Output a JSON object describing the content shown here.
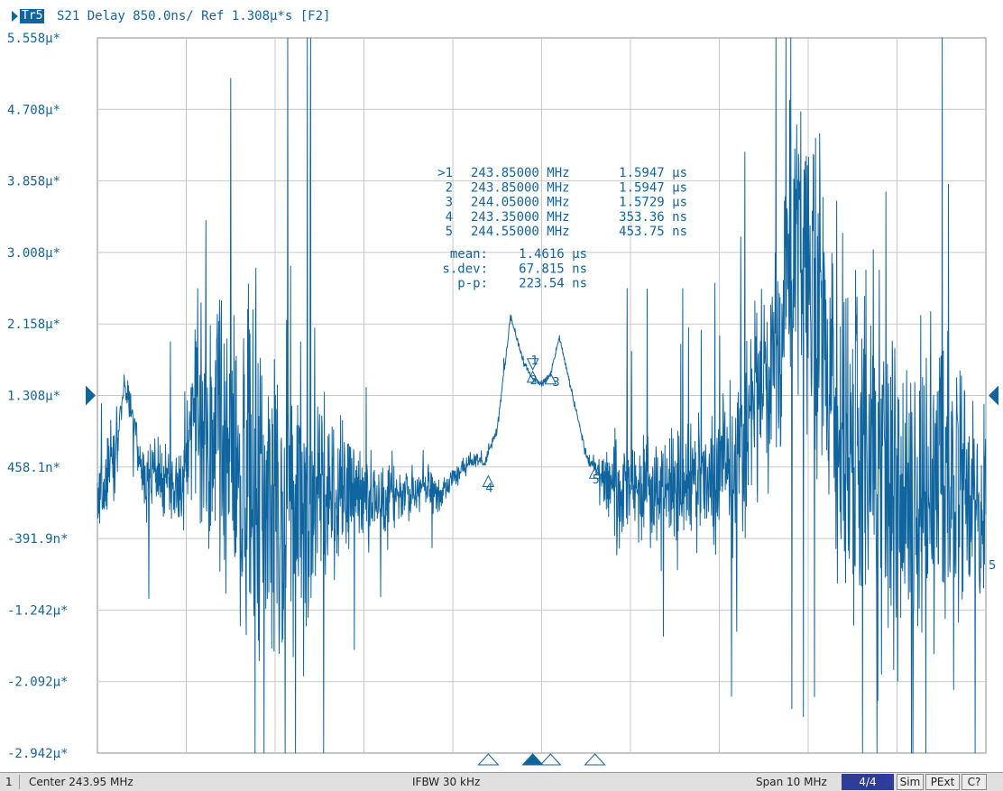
{
  "trace": {
    "badge": "Tr5",
    "title": "S21 Delay 850.0ns/ Ref 1.308µ*s [F2]",
    "color": "#10659e"
  },
  "marker_table": [
    {
      "label": ">1",
      "freq": "243.85000 MHz",
      "value": "1.5947 µs"
    },
    {
      "label": "2",
      "freq": "243.85000 MHz",
      "value": "1.5947 µs"
    },
    {
      "label": "3",
      "freq": "244.05000 MHz",
      "value": "1.5729 µs"
    },
    {
      "label": "4",
      "freq": "243.35000 MHz",
      "value": "353.36 ns"
    },
    {
      "label": "5",
      "freq": "244.55000 MHz",
      "value": "453.75 ns"
    }
  ],
  "stats": [
    {
      "label": "mean:",
      "value": "1.4616 µs"
    },
    {
      "label": "s.dev:",
      "value": "67.815 ns"
    },
    {
      "label": "p-p:",
      "value": "223.54 ns"
    }
  ],
  "status": {
    "channel": "1",
    "center": "Center 243.95 MHz",
    "ifbw": "IFBW 30 kHz",
    "span": "Span 10 MHz",
    "page": "4/4",
    "sim": "Sim",
    "pext": "PExt",
    "cal": "C?"
  },
  "chart_data": {
    "type": "line",
    "title": "S21 Delay 850.0ns/ Ref 1.308µ*s [F2]",
    "xlabel": "",
    "ylabel": "",
    "x_range_mhz": [
      238.95,
      248.95
    ],
    "ylim": [
      -2.942e-06,
      5.558e-06
    ],
    "reference_value": 1.308e-06,
    "y_ticks": [
      "5.558µ*",
      "4.708µ*",
      "3.858µ*",
      "3.008µ*",
      "2.158µ*",
      "1.308µ*",
      "458.1n*",
      "-391.9n*",
      "-1.242µ*",
      "-2.092µ*",
      "-2.942µ*"
    ],
    "y_tick_values": [
      5.558e-06,
      4.708e-06,
      3.858e-06,
      3.008e-06,
      2.158e-06,
      1.308e-06,
      4.581e-07,
      -3.919e-07,
      -1.242e-06,
      -2.092e-06,
      -2.942e-06
    ],
    "grid": true,
    "markers": [
      {
        "name": "1",
        "x": 243.85,
        "y": 1.5947e-06,
        "active": true
      },
      {
        "name": "2",
        "x": 243.85,
        "y": 1.5947e-06,
        "active": false
      },
      {
        "name": "3",
        "x": 244.05,
        "y": 1.5729e-06,
        "active": false
      },
      {
        "name": "4",
        "x": 243.35,
        "y": 3.5336e-07,
        "active": false
      },
      {
        "name": "5",
        "x": 244.55,
        "y": 4.5375e-07,
        "active": false
      }
    ],
    "envelope": {
      "x": [
        238.95,
        239.15,
        239.25,
        239.35,
        239.45,
        239.65,
        239.9,
        240.0,
        240.1,
        240.35,
        240.6,
        240.8,
        241.0,
        241.2,
        241.4,
        241.6,
        241.8,
        242.0,
        242.2,
        242.4,
        242.6,
        242.8,
        243.0,
        243.2,
        243.3,
        243.45,
        243.6,
        243.75,
        243.85,
        243.95,
        244.05,
        244.15,
        244.3,
        244.45,
        244.55,
        244.65,
        244.8,
        245.0,
        245.3,
        245.6,
        245.9,
        246.1,
        246.3,
        246.5,
        246.7,
        246.9,
        247.1,
        247.4,
        247.7,
        248.0,
        248.2,
        248.4,
        248.6,
        248.8,
        248.95
      ],
      "center": [
        0.0,
        0.6,
        1.45,
        1.1,
        0.4,
        0.3,
        0.2,
        0.8,
        1.3,
        0.9,
        0.4,
        0.2,
        0.3,
        0.0,
        0.3,
        0.2,
        0.2,
        0.05,
        0.1,
        0.15,
        0.2,
        0.1,
        0.4,
        0.55,
        0.5,
        0.9,
        2.25,
        1.7,
        1.5,
        1.45,
        1.55,
        2.0,
        1.3,
        0.6,
        0.45,
        0.35,
        0.2,
        0.1,
        0.15,
        0.2,
        0.3,
        0.5,
        1.0,
        1.4,
        2.3,
        3.4,
        2.0,
        0.7,
        0.5,
        0.3,
        0.2,
        0.35,
        0.1,
        0.0,
        0.1
      ],
      "noise": [
        0.6,
        0.5,
        0.15,
        0.3,
        0.5,
        0.5,
        0.6,
        1.0,
        1.4,
        2.2,
        2.6,
        2.6,
        2.4,
        2.0,
        1.6,
        1.1,
        0.7,
        0.6,
        0.5,
        0.4,
        0.35,
        0.25,
        0.15,
        0.1,
        0.08,
        0.06,
        0.05,
        0.04,
        0.04,
        0.04,
        0.04,
        0.04,
        0.05,
        0.08,
        0.12,
        0.5,
        0.7,
        0.8,
        0.8,
        0.8,
        0.9,
        1.1,
        1.3,
        1.5,
        1.7,
        2.0,
        2.3,
        2.4,
        2.5,
        2.4,
        2.2,
        2.0,
        1.9,
        1.8,
        1.7
      ]
    }
  }
}
